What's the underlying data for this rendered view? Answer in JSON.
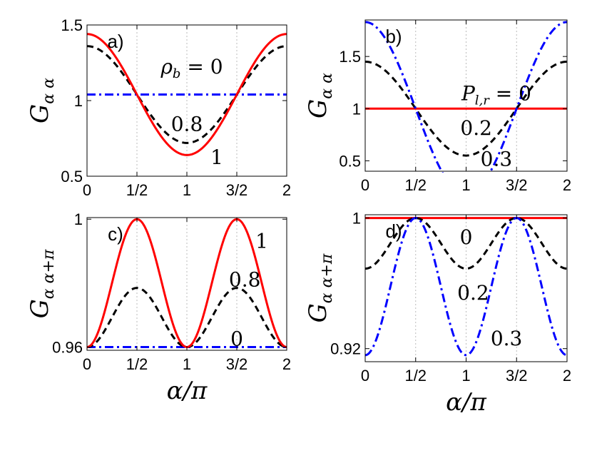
{
  "chart_data": [
    {
      "type": "line",
      "panel_label": "a)",
      "ylabel": "G_{α α}",
      "ylabel_main": "G",
      "ylabel_sub": "α α",
      "xlabel": "",
      "xlim": [
        0,
        2
      ],
      "ylim": [
        0.5,
        1.5
      ],
      "x_ticks": [
        "0",
        "1/2",
        "1",
        "3/2",
        "2"
      ],
      "y_ticks": [
        {
          "v": 0.5,
          "t": "0.5"
        },
        {
          "v": 1,
          "t": "1"
        },
        {
          "v": 1.5,
          "t": "1.5"
        }
      ],
      "series": [
        {
          "label": "0",
          "color": "#0000ff",
          "style": "dashdot",
          "mean": 1.04,
          "amp": 0.0,
          "freq": 2
        },
        {
          "label": "0.8",
          "color": "#000000",
          "style": "dashed",
          "mean": 1.04,
          "amp": 0.32,
          "freq": 2
        },
        {
          "label": "1",
          "color": "#ff0000",
          "style": "solid",
          "mean": 1.04,
          "amp": 0.4,
          "freq": 2
        }
      ],
      "annotations": [
        {
          "text": "ρ_b = 0",
          "x": 1.05,
          "y": 1.18
        },
        {
          "text": "0.8",
          "x": 1.0,
          "y": 0.8
        },
        {
          "text": "1",
          "x": 1.3,
          "y": 0.58
        }
      ]
    },
    {
      "type": "line",
      "panel_label": "b)",
      "ylabel": "G_{α α}",
      "ylabel_main": "G",
      "ylabel_sub": "α α",
      "xlabel": "",
      "xlim": [
        0,
        2
      ],
      "ylim": [
        0.4,
        1.85
      ],
      "x_ticks": [
        "0",
        "1/2",
        "1",
        "3/2",
        "2"
      ],
      "y_ticks": [
        {
          "v": 0.5,
          "t": "0.5"
        },
        {
          "v": 1,
          "t": "1"
        },
        {
          "v": 1.5,
          "t": "1.5"
        }
      ],
      "series": [
        {
          "label": "0",
          "color": "#ff0000",
          "style": "solid",
          "mean": 1.0,
          "amp": 0.0,
          "freq": 2
        },
        {
          "label": "0.2",
          "color": "#000000",
          "style": "dashed",
          "mean": 1.0,
          "amp": 0.45,
          "freq": 2
        },
        {
          "label": "0.3",
          "color": "#0000ff",
          "style": "dashdot",
          "mean": 1.0,
          "amp": 0.83,
          "freq": 2
        }
      ],
      "annotations": [
        {
          "text": "P_{l,r} = 0",
          "x": 1.3,
          "y": 1.08
        },
        {
          "text": "0.2",
          "x": 1.1,
          "y": 0.75
        },
        {
          "text": "0.3",
          "x": 1.3,
          "y": 0.45
        }
      ]
    },
    {
      "type": "line",
      "panel_label": "c)",
      "ylabel": "G_{α α+π}",
      "ylabel_main": "G",
      "ylabel_sub": "α α+π",
      "xlabel": "α/π",
      "xlim": [
        0,
        2
      ],
      "ylim": [
        0.959,
        1.0005
      ],
      "x_ticks": [
        "0",
        "1/2",
        "1",
        "3/2",
        "2"
      ],
      "y_ticks": [
        {
          "v": 0.96,
          "t": "0.96"
        },
        {
          "v": 1,
          "t": "1"
        }
      ],
      "series": [
        {
          "label": "0",
          "color": "#0000ff",
          "style": "dashdot",
          "base": 0.96,
          "amp": 0.0,
          "freq": 2
        },
        {
          "label": "0.8",
          "color": "#000000",
          "style": "dashed",
          "base": 0.96,
          "amp": 0.0185,
          "freq": 2
        },
        {
          "label": "1",
          "color": "#ff0000",
          "style": "solid",
          "base": 0.96,
          "amp": 0.04,
          "freq": 2
        }
      ],
      "annotations": [
        {
          "text": "1",
          "x": 1.75,
          "y": 0.991
        },
        {
          "text": "0.8",
          "x": 1.58,
          "y": 0.979
        },
        {
          "text": "0",
          "x": 1.5,
          "y": 0.9605
        }
      ]
    },
    {
      "type": "line",
      "panel_label": "d)",
      "ylabel": "G_{α α+π}",
      "ylabel_main": "G",
      "ylabel_sub": "α α+π",
      "xlabel": "α/π",
      "xlim": [
        0,
        2
      ],
      "ylim": [
        0.912,
        1.002
      ],
      "x_ticks": [
        "0",
        "1/2",
        "1",
        "3/2",
        "2"
      ],
      "y_ticks": [
        {
          "v": 0.92,
          "t": "0.92"
        },
        {
          "v": 1,
          "t": "1"
        }
      ],
      "series": [
        {
          "label": "0",
          "color": "#ff0000",
          "style": "solid",
          "top": 1.0,
          "amp": 0.0,
          "freq": 2
        },
        {
          "label": "0.2",
          "color": "#000000",
          "style": "dashed",
          "top": 1.0,
          "amp": 0.031,
          "freq": 2
        },
        {
          "label": "0.3",
          "color": "#0000ff",
          "style": "dashdot",
          "top": 1.0,
          "amp": 0.084,
          "freq": 2
        }
      ],
      "annotations": [
        {
          "text": "0",
          "x": 1.0,
          "y": 0.984
        },
        {
          "text": "0.2",
          "x": 1.07,
          "y": 0.95
        },
        {
          "text": "0.3",
          "x": 1.4,
          "y": 0.922
        }
      ]
    }
  ]
}
